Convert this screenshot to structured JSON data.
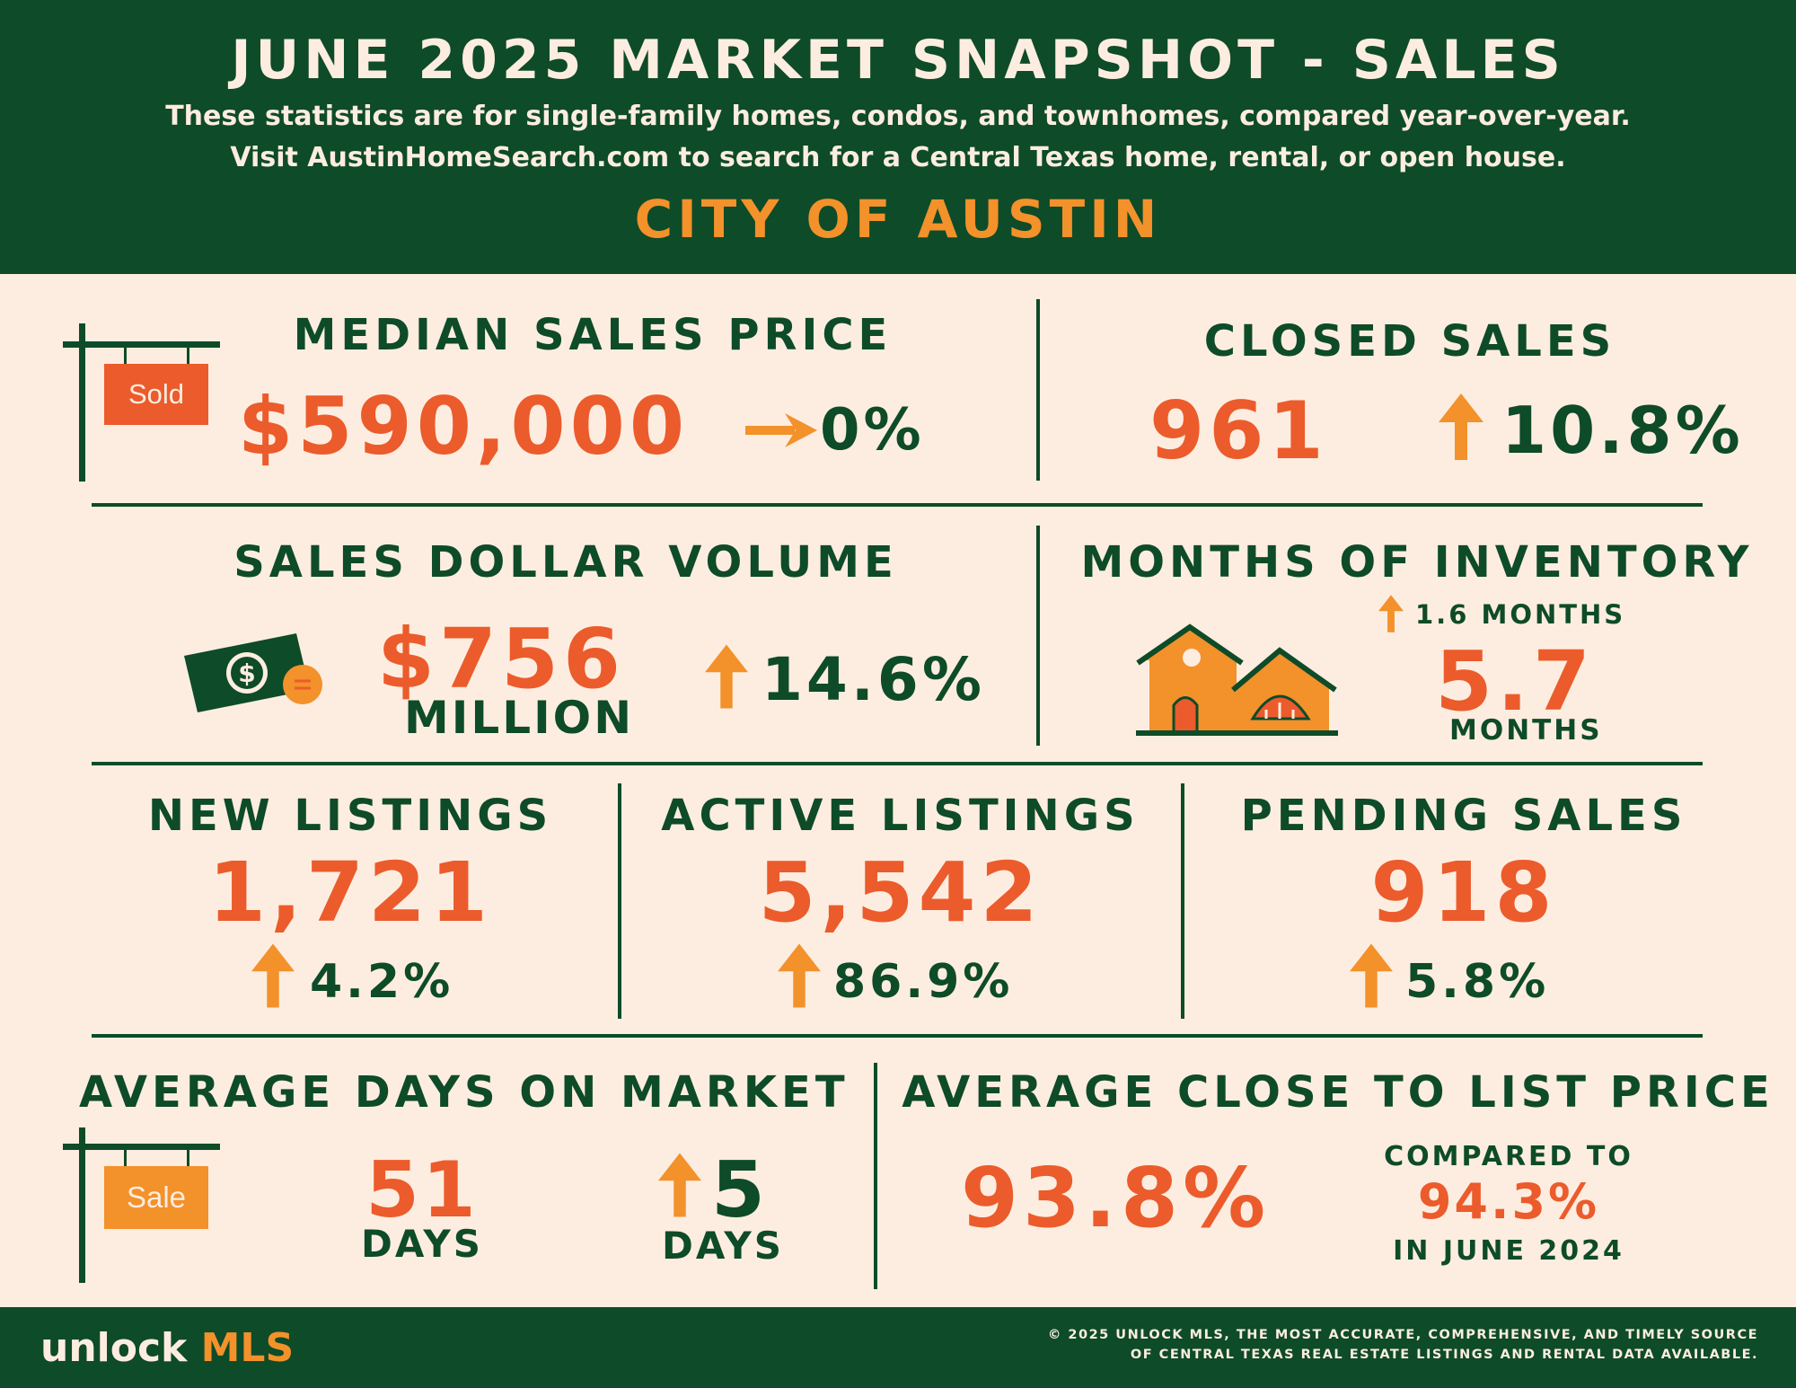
{
  "header": {
    "title": "JUNE 2025 MARKET SNAPSHOT - SALES",
    "subtitle_1": "These statistics are for single-family homes, condos, and townhomes, compared year-over-year.",
    "subtitle_2": "Visit AustinHomeSearch.com to search for a Central Texas home, rental, or open house.",
    "region": "CITY OF AUSTIN"
  },
  "median_sales_price": {
    "title": "MEDIAN SALES PRICE",
    "value": "$590,000",
    "change": "0%",
    "sign_text": "Sold",
    "direction": "flat"
  },
  "closed_sales": {
    "title": "CLOSED SALES",
    "value": "961",
    "change": "10.8%",
    "direction": "up"
  },
  "sales_dollar_volume": {
    "title": "SALES DOLLAR VOLUME",
    "value": "$756",
    "unit": "MILLION",
    "change": "14.6%",
    "direction": "up"
  },
  "months_of_inventory": {
    "title": "MONTHS OF INVENTORY",
    "change": "1.6  MONTHS",
    "value": "5.7",
    "unit": "MONTHS",
    "direction": "up"
  },
  "new_listings": {
    "title": "NEW LISTINGS",
    "value": "1,721",
    "change": "4.2%",
    "direction": "up"
  },
  "active_listings": {
    "title": "ACTIVE LISTINGS",
    "value": "5,542",
    "change": "86.9%",
    "direction": "up"
  },
  "pending_sales": {
    "title": "PENDING SALES",
    "value": "918",
    "change": "5.8%",
    "direction": "up"
  },
  "avg_days_on_market": {
    "title": "AVERAGE DAYS ON MARKET",
    "value": "51",
    "unit": "DAYS",
    "change": "5",
    "change_unit": "DAYS",
    "sign_text": "Sale",
    "direction": "up"
  },
  "avg_close_to_list": {
    "title": "AVERAGE CLOSE TO LIST PRICE",
    "value": "93.8%",
    "compare_label": "COMPARED TO",
    "compare_value": "94.3%",
    "compare_period": "IN JUNE 2024"
  },
  "footer": {
    "logo_part1": "unlock ",
    "logo_part2": "MLS",
    "copyright_1": "© 2025 UNLOCK MLS, THE MOST ACCURATE, COMPREHENSIVE, AND TIMELY SOURCE",
    "copyright_2": "OF CENTRAL TEXAS REAL ESTATE LISTINGS AND RENTAL DATA AVAILABLE."
  },
  "colors": {
    "dark_green": "#0E4B28",
    "orange_red": "#EC5B2B",
    "orange": "#F3912B",
    "cream": "#FDEDE0"
  }
}
